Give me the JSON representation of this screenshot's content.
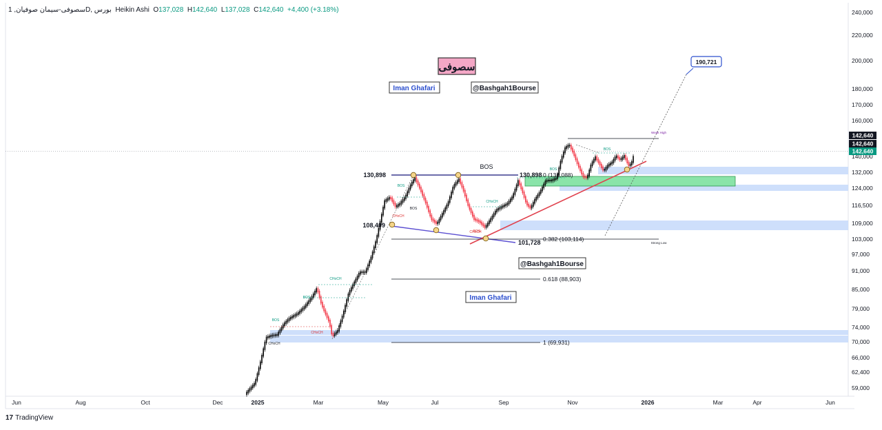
{
  "header": {
    "symbol": "سصوفی-سیمان صوفیان, 1D, بورس",
    "chart_style": "Heikin Ashi",
    "open_label": "O",
    "open": "137,028",
    "high_label": "H",
    "high": "142,640",
    "low_label": "L",
    "low": "137,028",
    "close_label": "C",
    "close": "142,640",
    "change": "+4,400 (+3.18%)"
  },
  "branding": {
    "logo_text": "TradingView",
    "logo_mark": "17"
  },
  "colors": {
    "up": "#089981",
    "down": "#f23645",
    "bull_body": "#000000",
    "bear_body": "#f23645",
    "zone_blue": "#c9dbfb",
    "zone_green": "#7ee2a0",
    "trend_red": "#e0404c",
    "trend_purple": "#5b4fd1",
    "label_blue": "#2c4fce"
  },
  "chart_data": {
    "type": "candlestick",
    "style": "Heikin Ashi",
    "y_axis": {
      "scale": "log",
      "ticks": [
        "240,000",
        "220,000",
        "200,000",
        "180,000",
        "170,000",
        "160,000",
        "140,000",
        "132,000",
        "124,000",
        "116,500",
        "109,000",
        "103,000",
        "97,000",
        "91,000",
        "85,000",
        "79,000",
        "74,000",
        "70,000",
        "66,000",
        "62,400",
        "59,000"
      ],
      "price_badges": [
        "142,640",
        "142,640",
        "142,640"
      ]
    },
    "x_axis": {
      "ticks": [
        "Jun",
        "Aug",
        "Oct",
        "Dec",
        "2025",
        "Mar",
        "May",
        "Jul",
        "Sep",
        "Nov",
        "2026",
        "Mar",
        "Apr",
        "Jun"
      ]
    },
    "last_price": 142640,
    "levels": [
      {
        "label": "130,898",
        "value": 130898
      },
      {
        "label": "130,898",
        "value": 130898
      },
      {
        "label": "108,409",
        "value": 108409
      },
      {
        "label": "101,728",
        "value": 101728
      }
    ],
    "fib_levels": [
      {
        "label": "0 (131,088)",
        "value": 131088
      },
      {
        "label": "0.382 (103,114)",
        "value": 103114
      },
      {
        "label": "0.618 (88,903)",
        "value": 88903
      },
      {
        "label": "1 (69,931)",
        "value": 69931
      }
    ],
    "target": {
      "label": "190,721",
      "value": 190721
    },
    "annotations": [
      "BOS",
      "BOS",
      "BOS",
      "BOS",
      "BOS",
      "BOS",
      "BOS",
      "BOS",
      "CHoCH",
      "CHoCH",
      "CHoCH",
      "CHoCH",
      "CHoCH",
      "CHoCH",
      "Weak High",
      "Strong Low"
    ],
    "watermarks": [
      "سصوفی",
      "Iman Ghafari",
      "@Bashgah1Bourse",
      "@Bashgah1Bourse",
      "Iman Ghafari"
    ]
  }
}
